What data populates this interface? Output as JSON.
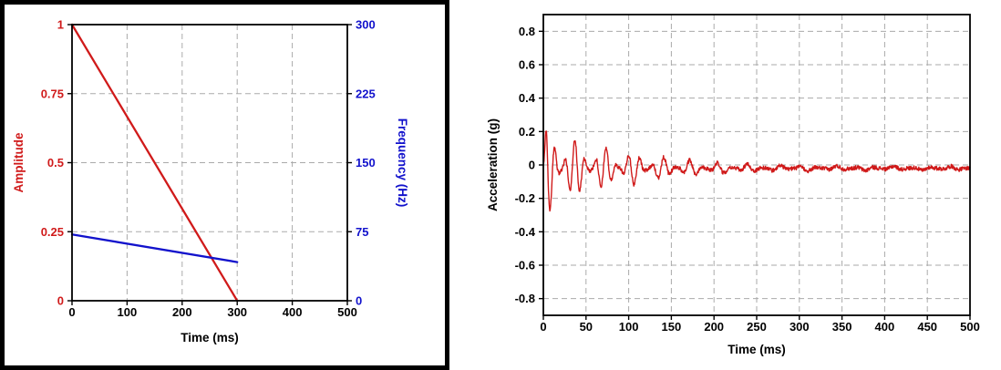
{
  "colors": {
    "red": "#d01a1a",
    "blue": "#1212cc",
    "black": "#000000",
    "grid": "#aaaaaa"
  },
  "chart_data": [
    {
      "type": "line",
      "xlabel": "Time (ms)",
      "ylabel_left": "Amplitude",
      "ylabel_right": "Frequency (Hz)",
      "xlim": [
        0,
        500
      ],
      "ylim_left": [
        0,
        1
      ],
      "ylim_right": [
        0,
        300
      ],
      "x_ticks": [
        0,
        100,
        200,
        300,
        400,
        500
      ],
      "y_ticks_left": [
        0,
        0.25,
        0.5,
        0.75,
        1
      ],
      "y_ticks_right": [
        0,
        75,
        150,
        225,
        300
      ],
      "grid": true,
      "legend": "none",
      "axis_color_left": "#d01a1a",
      "axis_color_right": "#1212cc",
      "series": [
        {
          "name": "amplitude",
          "axis": "left",
          "color": "#d01a1a",
          "x": [
            0,
            300
          ],
          "y": [
            1,
            0
          ]
        },
        {
          "name": "frequency",
          "axis": "right",
          "color": "#1212cc",
          "x": [
            0,
            300
          ],
          "y": [
            72,
            42
          ]
        }
      ]
    },
    {
      "type": "line",
      "xlabel": "Time (ms)",
      "ylabel": "Acceleration (g)",
      "xlim": [
        0,
        500
      ],
      "ylim": [
        -0.9,
        0.9
      ],
      "x_ticks": [
        0,
        50,
        100,
        150,
        200,
        250,
        300,
        350,
        400,
        450,
        500
      ],
      "y_ticks": [
        -0.8,
        -0.6,
        -0.4,
        -0.2,
        0,
        0.2,
        0.4,
        0.6,
        0.8
      ],
      "grid": true,
      "legend": "none",
      "series": [
        {
          "name": "acceleration",
          "color": "#d01a1a",
          "signal": {
            "model": "decaying-chirp-oscillation",
            "baseline_g": -0.02,
            "noise_g": 0.012,
            "freq_start_hz": 90,
            "freq_end_hz": 45,
            "sweep_end_ms": 300,
            "envelope_ms_g": [
              [
                0,
                0.02
              ],
              [
                4,
                0.3
              ],
              [
                12,
                0.27
              ],
              [
                25,
                0.2
              ],
              [
                40,
                0.17
              ],
              [
                60,
                0.14
              ],
              [
                90,
                0.11
              ],
              [
                120,
                0.085
              ],
              [
                150,
                0.06
              ],
              [
                180,
                0.045
              ],
              [
                220,
                0.03
              ],
              [
                260,
                0.02
              ],
              [
                320,
                0.014
              ],
              [
                500,
                0.012
              ]
            ]
          }
        }
      ]
    }
  ]
}
